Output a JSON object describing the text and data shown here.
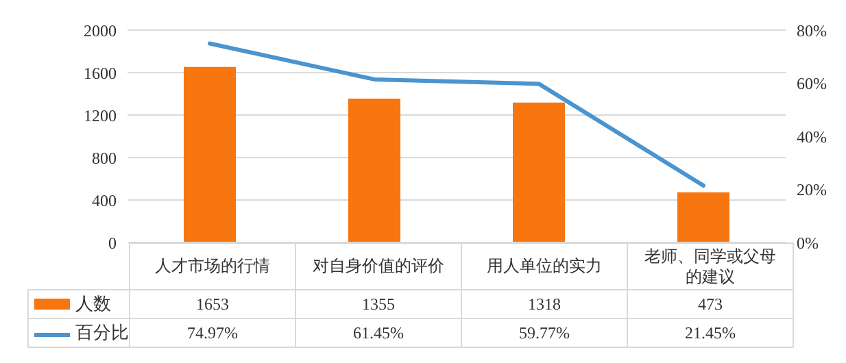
{
  "chart_data": {
    "type": "bar",
    "categories": [
      "人才市场的行情",
      "对自身价值的评价",
      "用人单位的实力",
      "老师、同学或父母的建议"
    ],
    "series": [
      {
        "name": "人数",
        "color": "#f7760f",
        "values": [
          1653,
          1355,
          1318,
          473
        ]
      },
      {
        "name": "百分比",
        "type": "line",
        "axis": "y2",
        "color": "#4a94cf",
        "values": [
          74.97,
          61.45,
          59.77,
          21.45
        ]
      }
    ],
    "value_labels": [
      [
        "1653",
        "1355",
        "1318",
        "473"
      ],
      [
        "74.97%",
        "61.45%",
        "59.77%",
        "21.45%"
      ]
    ],
    "ylim": [
      0,
      2000
    ],
    "yticks": [
      0,
      400,
      800,
      1200,
      1600,
      2000
    ],
    "y2lim": [
      0,
      80
    ],
    "y2ticks": [
      {
        "value": 0,
        "label": "0%"
      },
      {
        "value": 20,
        "label": "20%"
      },
      {
        "value": 40,
        "label": "40%"
      },
      {
        "value": 60,
        "label": "60%"
      },
      {
        "value": 80,
        "label": "80%"
      }
    ],
    "grid": "y",
    "legend": "bottom",
    "marker": "none",
    "line_style": "solid"
  }
}
